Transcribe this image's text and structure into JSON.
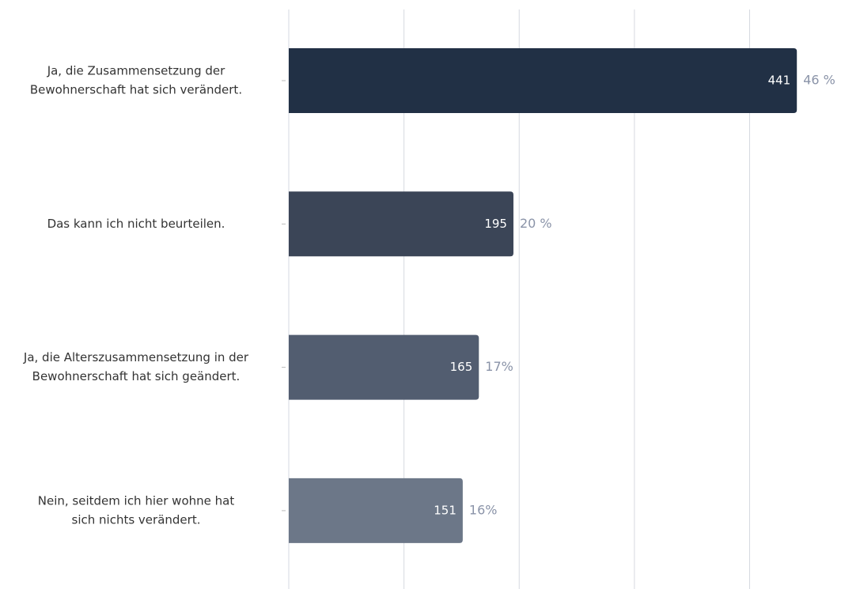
{
  "chart_data": {
    "type": "bar",
    "orientation": "horizontal",
    "categories": [
      [
        "Ja, die Zusammensetzung der",
        "Bewohnerschaft hat sich verändert."
      ],
      [
        "Das kann ich nicht beurteilen."
      ],
      [
        "Ja, die Alterszusammensetzung in der",
        "Bewohnerschaft hat sich geändert."
      ],
      [
        "Nein, seitdem ich hier wohne hat",
        "sich nichts verändert."
      ]
    ],
    "values": [
      441,
      195,
      165,
      151
    ],
    "colors": [
      "#213045",
      "#3b4557",
      "#525d70",
      "#6c7788"
    ],
    "shares": {
      "values": [
        46,
        20,
        17,
        16
      ],
      "value_labels": [
        "46 %",
        "20 %",
        "17%",
        "16%"
      ]
    },
    "xlim": [
      0,
      480
    ],
    "xticks": [
      0,
      100,
      200,
      300,
      400
    ],
    "grid": true
  }
}
